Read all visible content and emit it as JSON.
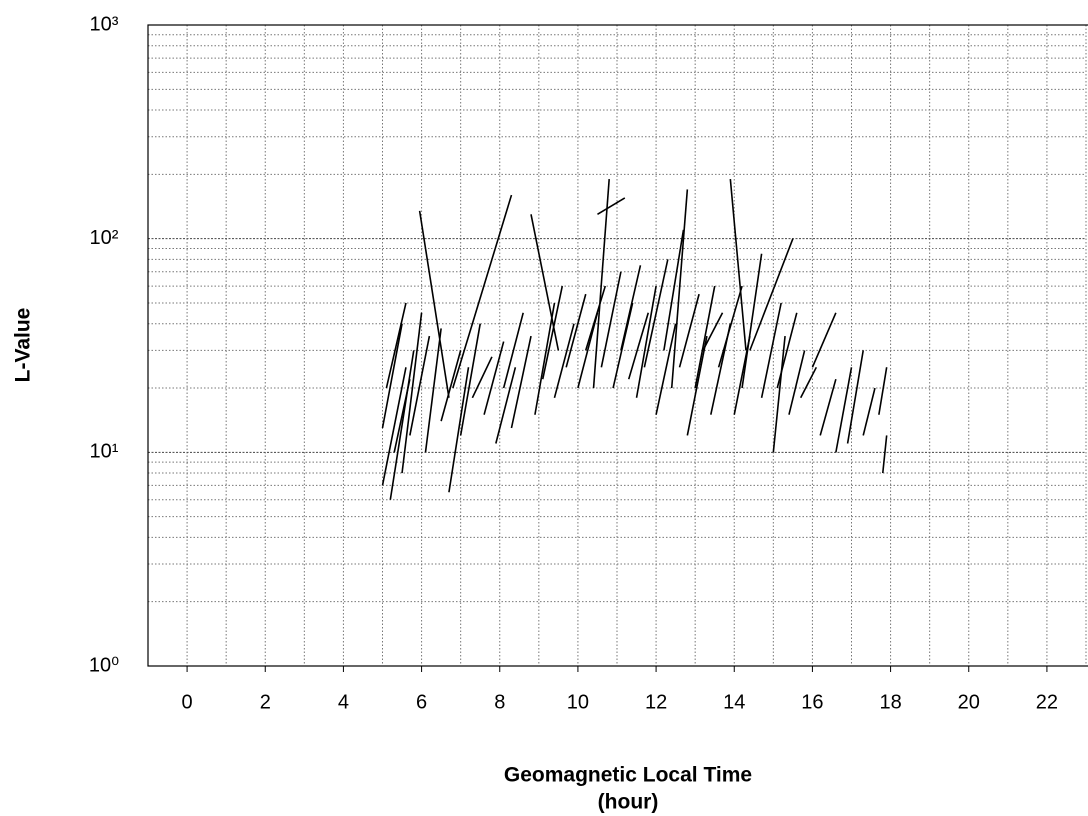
{
  "chart_data": {
    "type": "segments",
    "ylabel": "L-Value",
    "xlabel": [
      "Geomagnetic Local Time",
      "(hour)"
    ],
    "color": "#000000",
    "log_y": true,
    "grid": true,
    "xlim": [
      -1,
      23
    ],
    "xticks": [
      0,
      2,
      4,
      6,
      8,
      10,
      12,
      14,
      16,
      18,
      20,
      22
    ],
    "ylim": [
      1,
      1000
    ],
    "yticks": [
      {
        "value": 1,
        "label": "10⁰"
      },
      {
        "value": 10,
        "label": "10¹"
      },
      {
        "value": 100,
        "label": "10²"
      },
      {
        "value": 1000,
        "label": "10³"
      }
    ],
    "segments": [
      {
        "x": [
          5.0,
          5.6
        ],
        "y": [
          7,
          25
        ]
      },
      {
        "x": [
          5.0,
          5.5
        ],
        "y": [
          13,
          40
        ]
      },
      {
        "x": [
          5.1,
          5.6
        ],
        "y": [
          20,
          50
        ]
      },
      {
        "x": [
          5.2,
          5.8
        ],
        "y": [
          6,
          30
        ]
      },
      {
        "x": [
          5.3,
          5.7
        ],
        "y": [
          10,
          22
        ]
      },
      {
        "x": [
          5.5,
          6.0
        ],
        "y": [
          8,
          45
        ]
      },
      {
        "x": [
          5.7,
          6.2
        ],
        "y": [
          12,
          35
        ]
      },
      {
        "x": [
          5.95,
          6.7
        ],
        "y": [
          135,
          18
        ]
      },
      {
        "x": [
          6.1,
          6.5
        ],
        "y": [
          10,
          38
        ]
      },
      {
        "x": [
          6.5,
          7.0
        ],
        "y": [
          14,
          30
        ]
      },
      {
        "x": [
          6.7,
          7.2
        ],
        "y": [
          6.5,
          25
        ]
      },
      {
        "x": [
          6.8,
          8.3
        ],
        "y": [
          20,
          160
        ]
      },
      {
        "x": [
          7.0,
          7.5
        ],
        "y": [
          12,
          40
        ]
      },
      {
        "x": [
          7.3,
          7.8
        ],
        "y": [
          18,
          28
        ]
      },
      {
        "x": [
          7.6,
          8.1
        ],
        "y": [
          15,
          33
        ]
      },
      {
        "x": [
          7.9,
          8.4
        ],
        "y": [
          11,
          25
        ]
      },
      {
        "x": [
          8.1,
          8.6
        ],
        "y": [
          20,
          45
        ]
      },
      {
        "x": [
          8.3,
          8.8
        ],
        "y": [
          13,
          35
        ]
      },
      {
        "x": [
          8.8,
          9.5
        ],
        "y": [
          130,
          30
        ]
      },
      {
        "x": [
          8.9,
          9.4
        ],
        "y": [
          15,
          50
        ]
      },
      {
        "x": [
          9.1,
          9.6
        ],
        "y": [
          22,
          60
        ]
      },
      {
        "x": [
          9.4,
          9.9
        ],
        "y": [
          18,
          40
        ]
      },
      {
        "x": [
          9.7,
          10.2
        ],
        "y": [
          25,
          55
        ]
      },
      {
        "x": [
          10.0,
          10.5
        ],
        "y": [
          20,
          45
        ]
      },
      {
        "x": [
          10.2,
          10.7
        ],
        "y": [
          30,
          60
        ]
      },
      {
        "x": [
          10.4,
          10.8
        ],
        "y": [
          20,
          190
        ]
      },
      {
        "x": [
          10.5,
          11.2
        ],
        "y": [
          130,
          155
        ]
      },
      {
        "x": [
          10.6,
          11.1
        ],
        "y": [
          25,
          70
        ]
      },
      {
        "x": [
          10.9,
          11.4
        ],
        "y": [
          20,
          50
        ]
      },
      {
        "x": [
          11.1,
          11.6
        ],
        "y": [
          30,
          75
        ]
      },
      {
        "x": [
          11.3,
          11.8
        ],
        "y": [
          22,
          45
        ]
      },
      {
        "x": [
          11.5,
          12.0
        ],
        "y": [
          18,
          60
        ]
      },
      {
        "x": [
          11.7,
          12.3
        ],
        "y": [
          25,
          80
        ]
      },
      {
        "x": [
          12.0,
          12.5
        ],
        "y": [
          15,
          40
        ]
      },
      {
        "x": [
          12.2,
          12.7
        ],
        "y": [
          30,
          110
        ]
      },
      {
        "x": [
          12.4,
          12.8
        ],
        "y": [
          20,
          170
        ]
      },
      {
        "x": [
          12.6,
          13.1
        ],
        "y": [
          25,
          55
        ]
      },
      {
        "x": [
          12.8,
          13.3
        ],
        "y": [
          12,
          35
        ]
      },
      {
        "x": [
          13.0,
          13.5
        ],
        "y": [
          20,
          60
        ]
      },
      {
        "x": [
          13.2,
          13.7
        ],
        "y": [
          30,
          45
        ]
      },
      {
        "x": [
          13.4,
          13.9
        ],
        "y": [
          15,
          40
        ]
      },
      {
        "x": [
          13.6,
          14.2
        ],
        "y": [
          25,
          60
        ]
      },
      {
        "x": [
          13.9,
          14.3
        ],
        "y": [
          190,
          30
        ]
      },
      {
        "x": [
          14.0,
          14.4
        ],
        "y": [
          15,
          35
        ]
      },
      {
        "x": [
          14.2,
          14.7
        ],
        "y": [
          20,
          85
        ]
      },
      {
        "x": [
          14.4,
          15.5
        ],
        "y": [
          30,
          100
        ]
      },
      {
        "x": [
          14.7,
          15.2
        ],
        "y": [
          18,
          50
        ]
      },
      {
        "x": [
          15.0,
          15.3
        ],
        "y": [
          10,
          35
        ]
      },
      {
        "x": [
          15.1,
          15.6
        ],
        "y": [
          20,
          45
        ]
      },
      {
        "x": [
          15.4,
          15.8
        ],
        "y": [
          15,
          30
        ]
      },
      {
        "x": [
          15.7,
          16.1
        ],
        "y": [
          18,
          25
        ]
      },
      {
        "x": [
          16.0,
          16.6
        ],
        "y": [
          25,
          45
        ]
      },
      {
        "x": [
          16.2,
          16.6
        ],
        "y": [
          12,
          22
        ]
      },
      {
        "x": [
          16.6,
          17.0
        ],
        "y": [
          10,
          25
        ]
      },
      {
        "x": [
          16.9,
          17.3
        ],
        "y": [
          11,
          30
        ]
      },
      {
        "x": [
          17.3,
          17.6
        ],
        "y": [
          12,
          20
        ]
      },
      {
        "x": [
          17.7,
          17.9
        ],
        "y": [
          15,
          25
        ]
      },
      {
        "x": [
          17.8,
          17.9
        ],
        "y": [
          8,
          12
        ]
      }
    ]
  }
}
